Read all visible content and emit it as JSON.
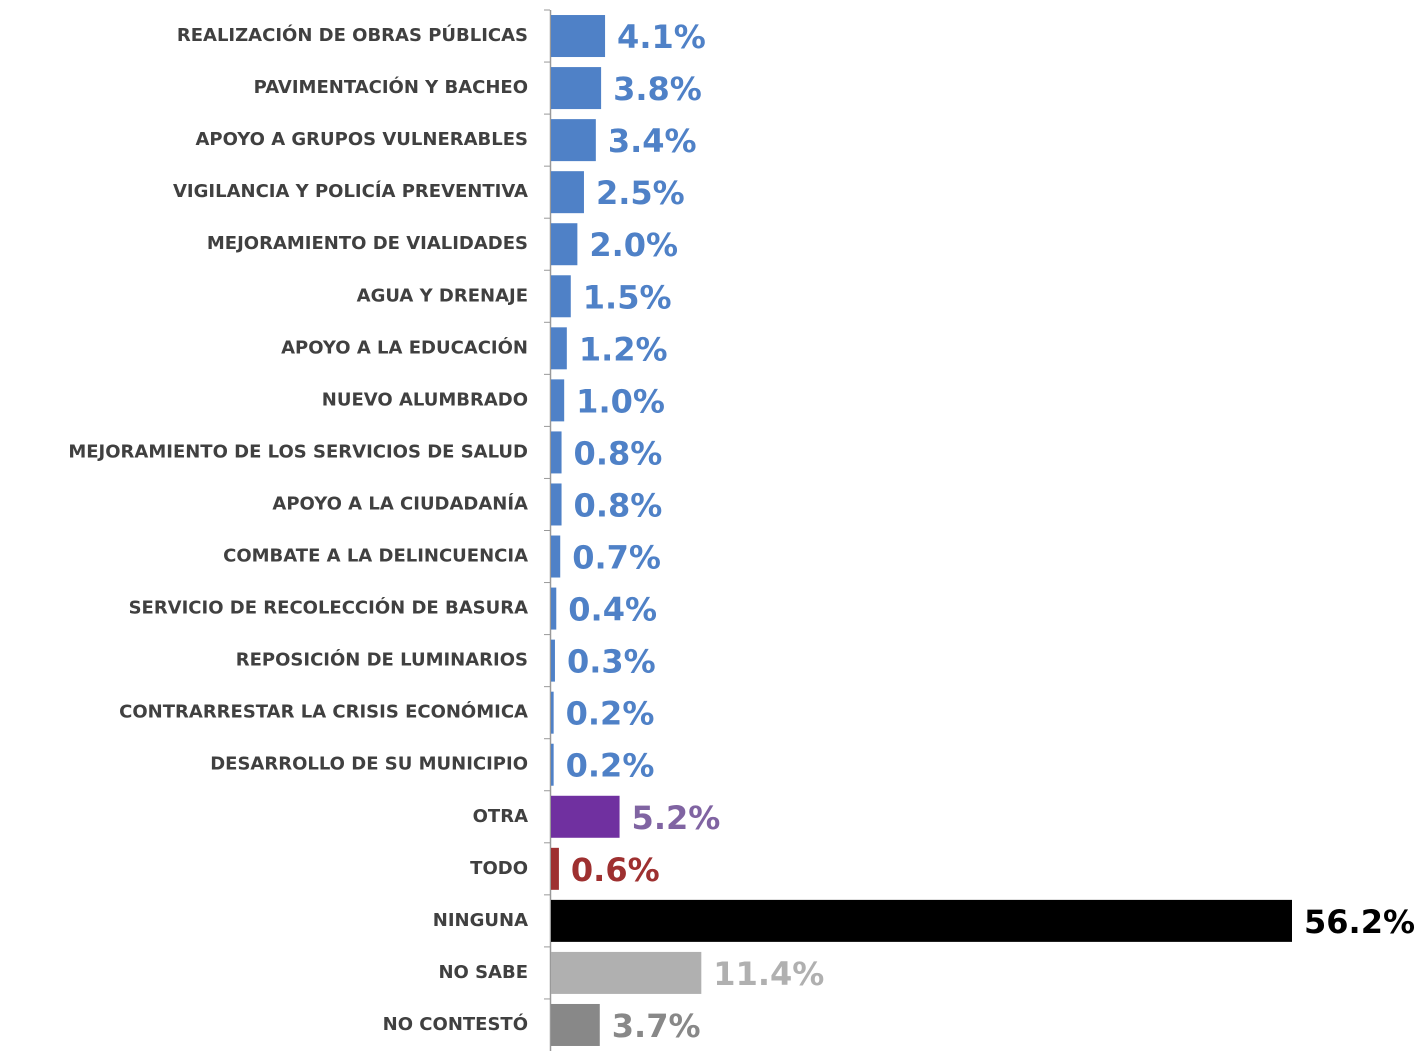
{
  "chart_data": {
    "type": "hbar",
    "categories": [
      "REALIZACIÓN DE OBRAS PÚBLICAS",
      "PAVIMENTACIÓN Y BACHEO",
      "APOYO A GRUPOS VULNERABLES",
      "VIGILANCIA Y POLICÍA PREVENTIVA",
      "MEJORAMIENTO DE VIALIDADES",
      "AGUA Y DRENAJE",
      "APOYO A LA EDUCACIÓN",
      "NUEVO ALUMBRADO",
      "MEJORAMIENTO DE LOS SERVICIOS DE SALUD",
      "APOYO A LA CIUDADANÍA",
      "COMBATE A LA DELINCUENCIA",
      "SERVICIO DE RECOLECCIÓN DE BASURA",
      "REPOSICIÓN DE LUMINARIOS",
      "CONTRARRESTAR LA CRISIS ECONÓMICA",
      "DESARROLLO DE SU MUNICIPIO",
      "OTRA",
      "TODO",
      "NINGUNA",
      "NO SABE",
      "NO CONTESTÓ"
    ],
    "values": [
      4.1,
      3.8,
      3.4,
      2.5,
      2.0,
      1.5,
      1.2,
      1.0,
      0.8,
      0.8,
      0.7,
      0.4,
      0.3,
      0.2,
      0.2,
      5.2,
      0.6,
      56.2,
      11.4,
      3.7
    ],
    "value_labels": [
      "4.1%",
      "3.8%",
      "3.4%",
      "2.5%",
      "2.0%",
      "1.5%",
      "1.2%",
      "1.0%",
      "0.8%",
      "0.8%",
      "0.7%",
      "0.4%",
      "0.3%",
      "0.2%",
      "0.2%",
      "5.2%",
      "0.6%",
      "56.2%",
      "11.4%",
      "3.7%"
    ],
    "colors": [
      "#4f81c7",
      "#4f81c7",
      "#4f81c7",
      "#4f81c7",
      "#4f81c7",
      "#4f81c7",
      "#4f81c7",
      "#4f81c7",
      "#4f81c7",
      "#4f81c7",
      "#4f81c7",
      "#4f81c7",
      "#4f81c7",
      "#4f81c7",
      "#4f81c7",
      "#7030a0",
      "#9e3030",
      "#000000",
      "#b0b0b0",
      "#888888"
    ],
    "label_colors": [
      "#4f81c7",
      "#4f81c7",
      "#4f81c7",
      "#4f81c7",
      "#4f81c7",
      "#4f81c7",
      "#4f81c7",
      "#4f81c7",
      "#4f81c7",
      "#4f81c7",
      "#4f81c7",
      "#4f81c7",
      "#4f81c7",
      "#4f81c7",
      "#4f81c7",
      "#8064a2",
      "#9e3030",
      "#000000",
      "#b0b0b0",
      "#888888"
    ]
  }
}
